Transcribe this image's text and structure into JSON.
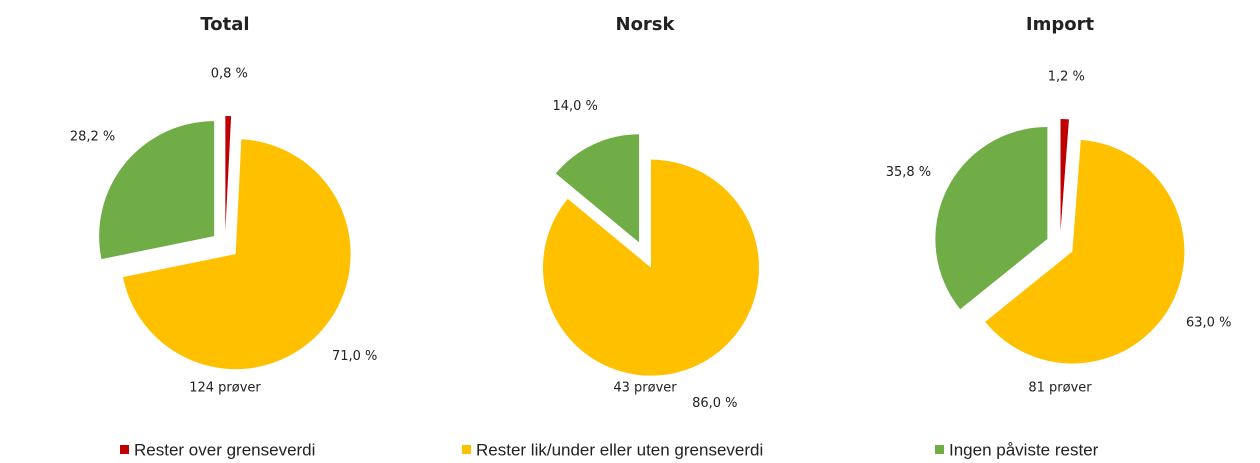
{
  "chart_data": [
    {
      "type": "pie",
      "title": "Total",
      "note": "124 prøver",
      "values": [
        0.8,
        71.0,
        28.2
      ],
      "value_labels": [
        "0,8 %",
        "71,0 %",
        "28,2 %"
      ]
    },
    {
      "type": "pie",
      "title": "Norsk",
      "note": "43 prøver",
      "values": [
        0,
        86.0,
        14.0
      ],
      "value_labels": [
        null,
        "86,0 %",
        "14,0 %"
      ]
    },
    {
      "type": "pie",
      "title": "Import",
      "note": "81 prøver",
      "values": [
        1.2,
        63.0,
        35.8
      ],
      "value_labels": [
        "1,2 %",
        "63,0 %",
        "35,8 %"
      ]
    }
  ],
  "legend": {
    "labels": [
      "Rester over grenseverdi",
      "Rester lik/under eller uten grenseverdi",
      "Ingen påviste rester"
    ],
    "colors": [
      "#c00000",
      "#ffc000",
      "#70ad47"
    ]
  }
}
